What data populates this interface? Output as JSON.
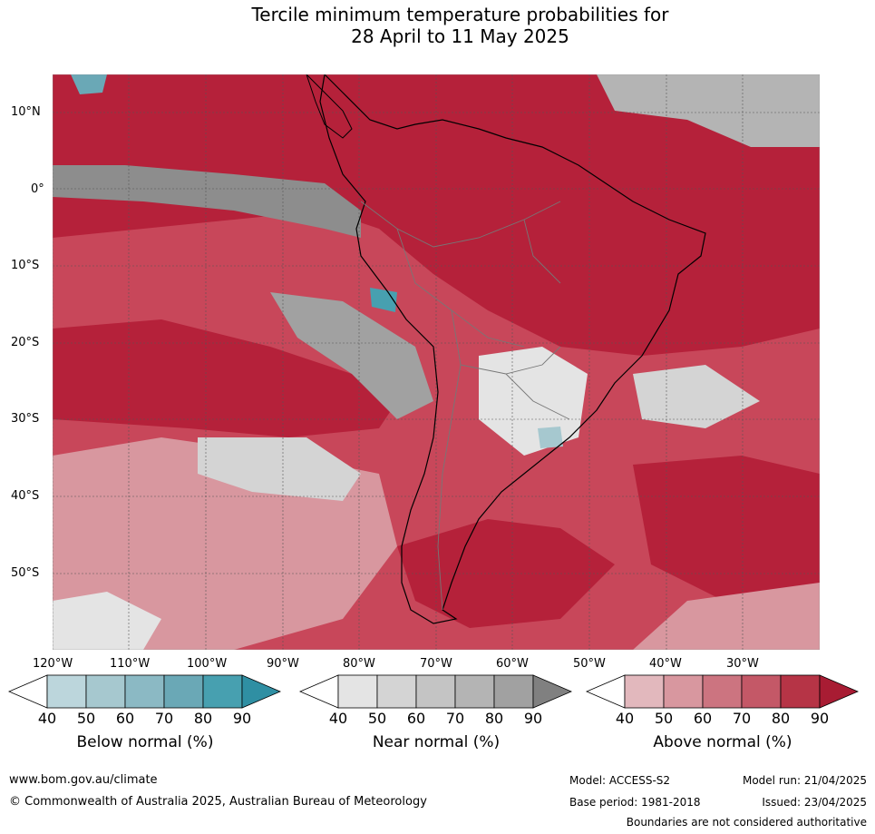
{
  "title": {
    "line1": "Tercile minimum temperature probabilities for",
    "line2": "28 April to 11 May 2025"
  },
  "map": {
    "lat_labels": [
      "10°N",
      "0°",
      "10°S",
      "20°S",
      "30°S",
      "40°S",
      "50°S"
    ],
    "lon_labels": [
      "120°W",
      "110°W",
      "100°W",
      "90°W",
      "80°W",
      "70°W",
      "60°W",
      "50°W",
      "40°W",
      "30°W"
    ],
    "ocean_base_color": "#c8475a",
    "strong_above_color": "#b5213a",
    "near_normal_color": "#8d8d8d",
    "below_normal_color": "#5ea7b6"
  },
  "colorbars": [
    {
      "label": "Below normal (%)",
      "ticks": [
        "40",
        "50",
        "60",
        "70",
        "80",
        "90"
      ],
      "colors": [
        "#ffffff",
        "#bcd6dc",
        "#a6c8cf",
        "#8bb9c4",
        "#6aa8b6",
        "#47a0b0",
        "#2f8fa3"
      ]
    },
    {
      "label": "Near normal (%)",
      "ticks": [
        "40",
        "50",
        "60",
        "70",
        "80",
        "90"
      ],
      "colors": [
        "#ffffff",
        "#e4e4e4",
        "#d4d4d4",
        "#c4c4c4",
        "#b4b4b4",
        "#a1a1a1",
        "#808080"
      ]
    },
    {
      "label": "Above normal (%)",
      "ticks": [
        "40",
        "50",
        "60",
        "70",
        "80",
        "90"
      ],
      "colors": [
        "#ffffff",
        "#e2b8bd",
        "#d8979f",
        "#cc7480",
        "#c45867",
        "#b63446",
        "#a81c33"
      ]
    }
  ],
  "footer": {
    "website": "www.bom.gov.au/climate",
    "copyright": "© Commonwealth of Australia 2025, Australian Bureau of Meteorology",
    "model": "Model: ACCESS-S2",
    "base_period": "Base period: 1981-2018",
    "model_run": "Model run: 21/04/2025",
    "issued": "Issued: 23/04/2025",
    "disclaimer": "Boundaries are not considered authoritative"
  }
}
